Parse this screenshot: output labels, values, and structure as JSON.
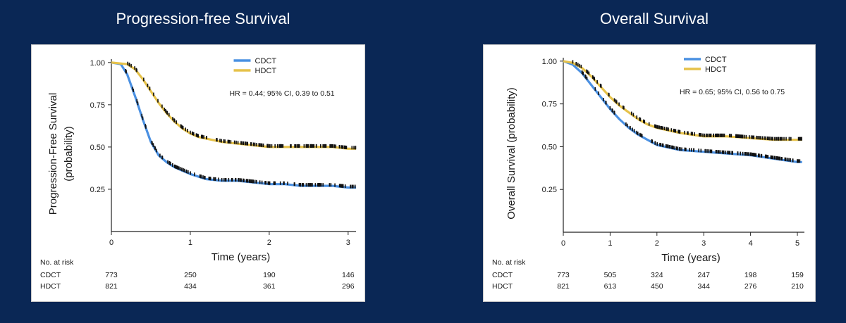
{
  "panels": {
    "left_title": "Progression-free Survival",
    "right_title": "Overall Survival"
  },
  "colors": {
    "background": "#0a2755",
    "cdct": "#4a90e2",
    "hdct": "#e6c24a",
    "censor": "#111111"
  },
  "chart_data": [
    {
      "type": "line",
      "title": "Progression-free Survival",
      "xlabel": "Time (years)",
      "ylabel": [
        "Progression-Free Survival",
        "(probability)"
      ],
      "xlim": [
        0,
        3.1
      ],
      "ylim": [
        0.0,
        1.02
      ],
      "x_ticks": [
        0,
        1,
        2,
        3
      ],
      "y_ticks": [
        0.25,
        0.5,
        0.75,
        1.0
      ],
      "y_tick_labels": [
        "0.25",
        "0.50",
        "0.75",
        "1.00"
      ],
      "legend_position": "top-right",
      "annotation": "HR = 0.44; 95% CI, 0.39 to 0.51",
      "series": [
        {
          "name": "CDCT",
          "color": "#4a90e2",
          "x": [
            0,
            0.12,
            0.2,
            0.3,
            0.4,
            0.5,
            0.6,
            0.7,
            0.8,
            0.9,
            1.0,
            1.2,
            1.4,
            1.6,
            1.8,
            2.0,
            2.2,
            2.4,
            2.6,
            2.8,
            3.0,
            3.1
          ],
          "y": [
            1.0,
            0.99,
            0.93,
            0.8,
            0.66,
            0.53,
            0.45,
            0.41,
            0.38,
            0.36,
            0.34,
            0.31,
            0.3,
            0.3,
            0.29,
            0.28,
            0.28,
            0.27,
            0.27,
            0.27,
            0.26,
            0.26
          ]
        },
        {
          "name": "HDCT",
          "color": "#e6c24a",
          "x": [
            0,
            0.2,
            0.3,
            0.4,
            0.5,
            0.6,
            0.7,
            0.8,
            0.9,
            1.0,
            1.1,
            1.2,
            1.4,
            1.6,
            1.8,
            2.0,
            2.2,
            2.4,
            2.6,
            2.8,
            3.0,
            3.1
          ],
          "y": [
            1.0,
            0.99,
            0.96,
            0.9,
            0.83,
            0.76,
            0.7,
            0.65,
            0.61,
            0.58,
            0.56,
            0.55,
            0.53,
            0.52,
            0.51,
            0.5,
            0.5,
            0.5,
            0.5,
            0.5,
            0.49,
            0.49
          ]
        }
      ],
      "risk_table": {
        "label": "No. at risk",
        "times": [
          0,
          1,
          2,
          3
        ],
        "rows": [
          {
            "name": "CDCT",
            "values": [
              "773",
              "250",
              "190",
              "146"
            ]
          },
          {
            "name": "HDCT",
            "values": [
              "821",
              "434",
              "361",
              "296"
            ]
          }
        ]
      }
    },
    {
      "type": "line",
      "title": "Overall Survival",
      "xlabel": "Time (years)",
      "ylabel": [
        "Overall Survival (probability)"
      ],
      "xlim": [
        0,
        5.15
      ],
      "ylim": [
        0.0,
        1.02
      ],
      "x_ticks": [
        0,
        1,
        2,
        3,
        4,
        5
      ],
      "y_ticks": [
        0.25,
        0.5,
        0.75,
        1.0
      ],
      "y_tick_labels": [
        "0.25",
        "0.50",
        "0.75",
        "1.00"
      ],
      "legend_position": "top-right",
      "annotation": "HR = 0.65; 95% CI, 0.56 to 0.75",
      "series": [
        {
          "name": "CDCT",
          "color": "#4a90e2",
          "x": [
            0,
            0.2,
            0.4,
            0.6,
            0.8,
            1.0,
            1.2,
            1.4,
            1.6,
            1.8,
            2.0,
            2.5,
            3.0,
            3.5,
            4.0,
            4.5,
            5.0,
            5.1
          ],
          "y": [
            1.0,
            0.98,
            0.93,
            0.86,
            0.79,
            0.72,
            0.66,
            0.61,
            0.57,
            0.54,
            0.51,
            0.48,
            0.47,
            0.46,
            0.45,
            0.43,
            0.41,
            0.41
          ]
        },
        {
          "name": "HDCT",
          "color": "#e6c24a",
          "x": [
            0,
            0.2,
            0.4,
            0.6,
            0.8,
            1.0,
            1.2,
            1.4,
            1.6,
            1.8,
            2.0,
            2.5,
            3.0,
            3.5,
            4.0,
            4.5,
            5.0,
            5.1
          ],
          "y": [
            1.0,
            0.99,
            0.96,
            0.91,
            0.85,
            0.79,
            0.74,
            0.7,
            0.66,
            0.63,
            0.61,
            0.58,
            0.56,
            0.56,
            0.55,
            0.54,
            0.54,
            0.54
          ]
        }
      ],
      "risk_table": {
        "label": "No. at risk",
        "times": [
          0,
          1,
          2,
          3,
          4,
          5
        ],
        "rows": [
          {
            "name": "CDCT",
            "values": [
              "773",
              "505",
              "324",
              "247",
              "198",
              "159"
            ]
          },
          {
            "name": "HDCT",
            "values": [
              "821",
              "613",
              "450",
              "344",
              "276",
              "210"
            ]
          }
        ]
      }
    }
  ]
}
